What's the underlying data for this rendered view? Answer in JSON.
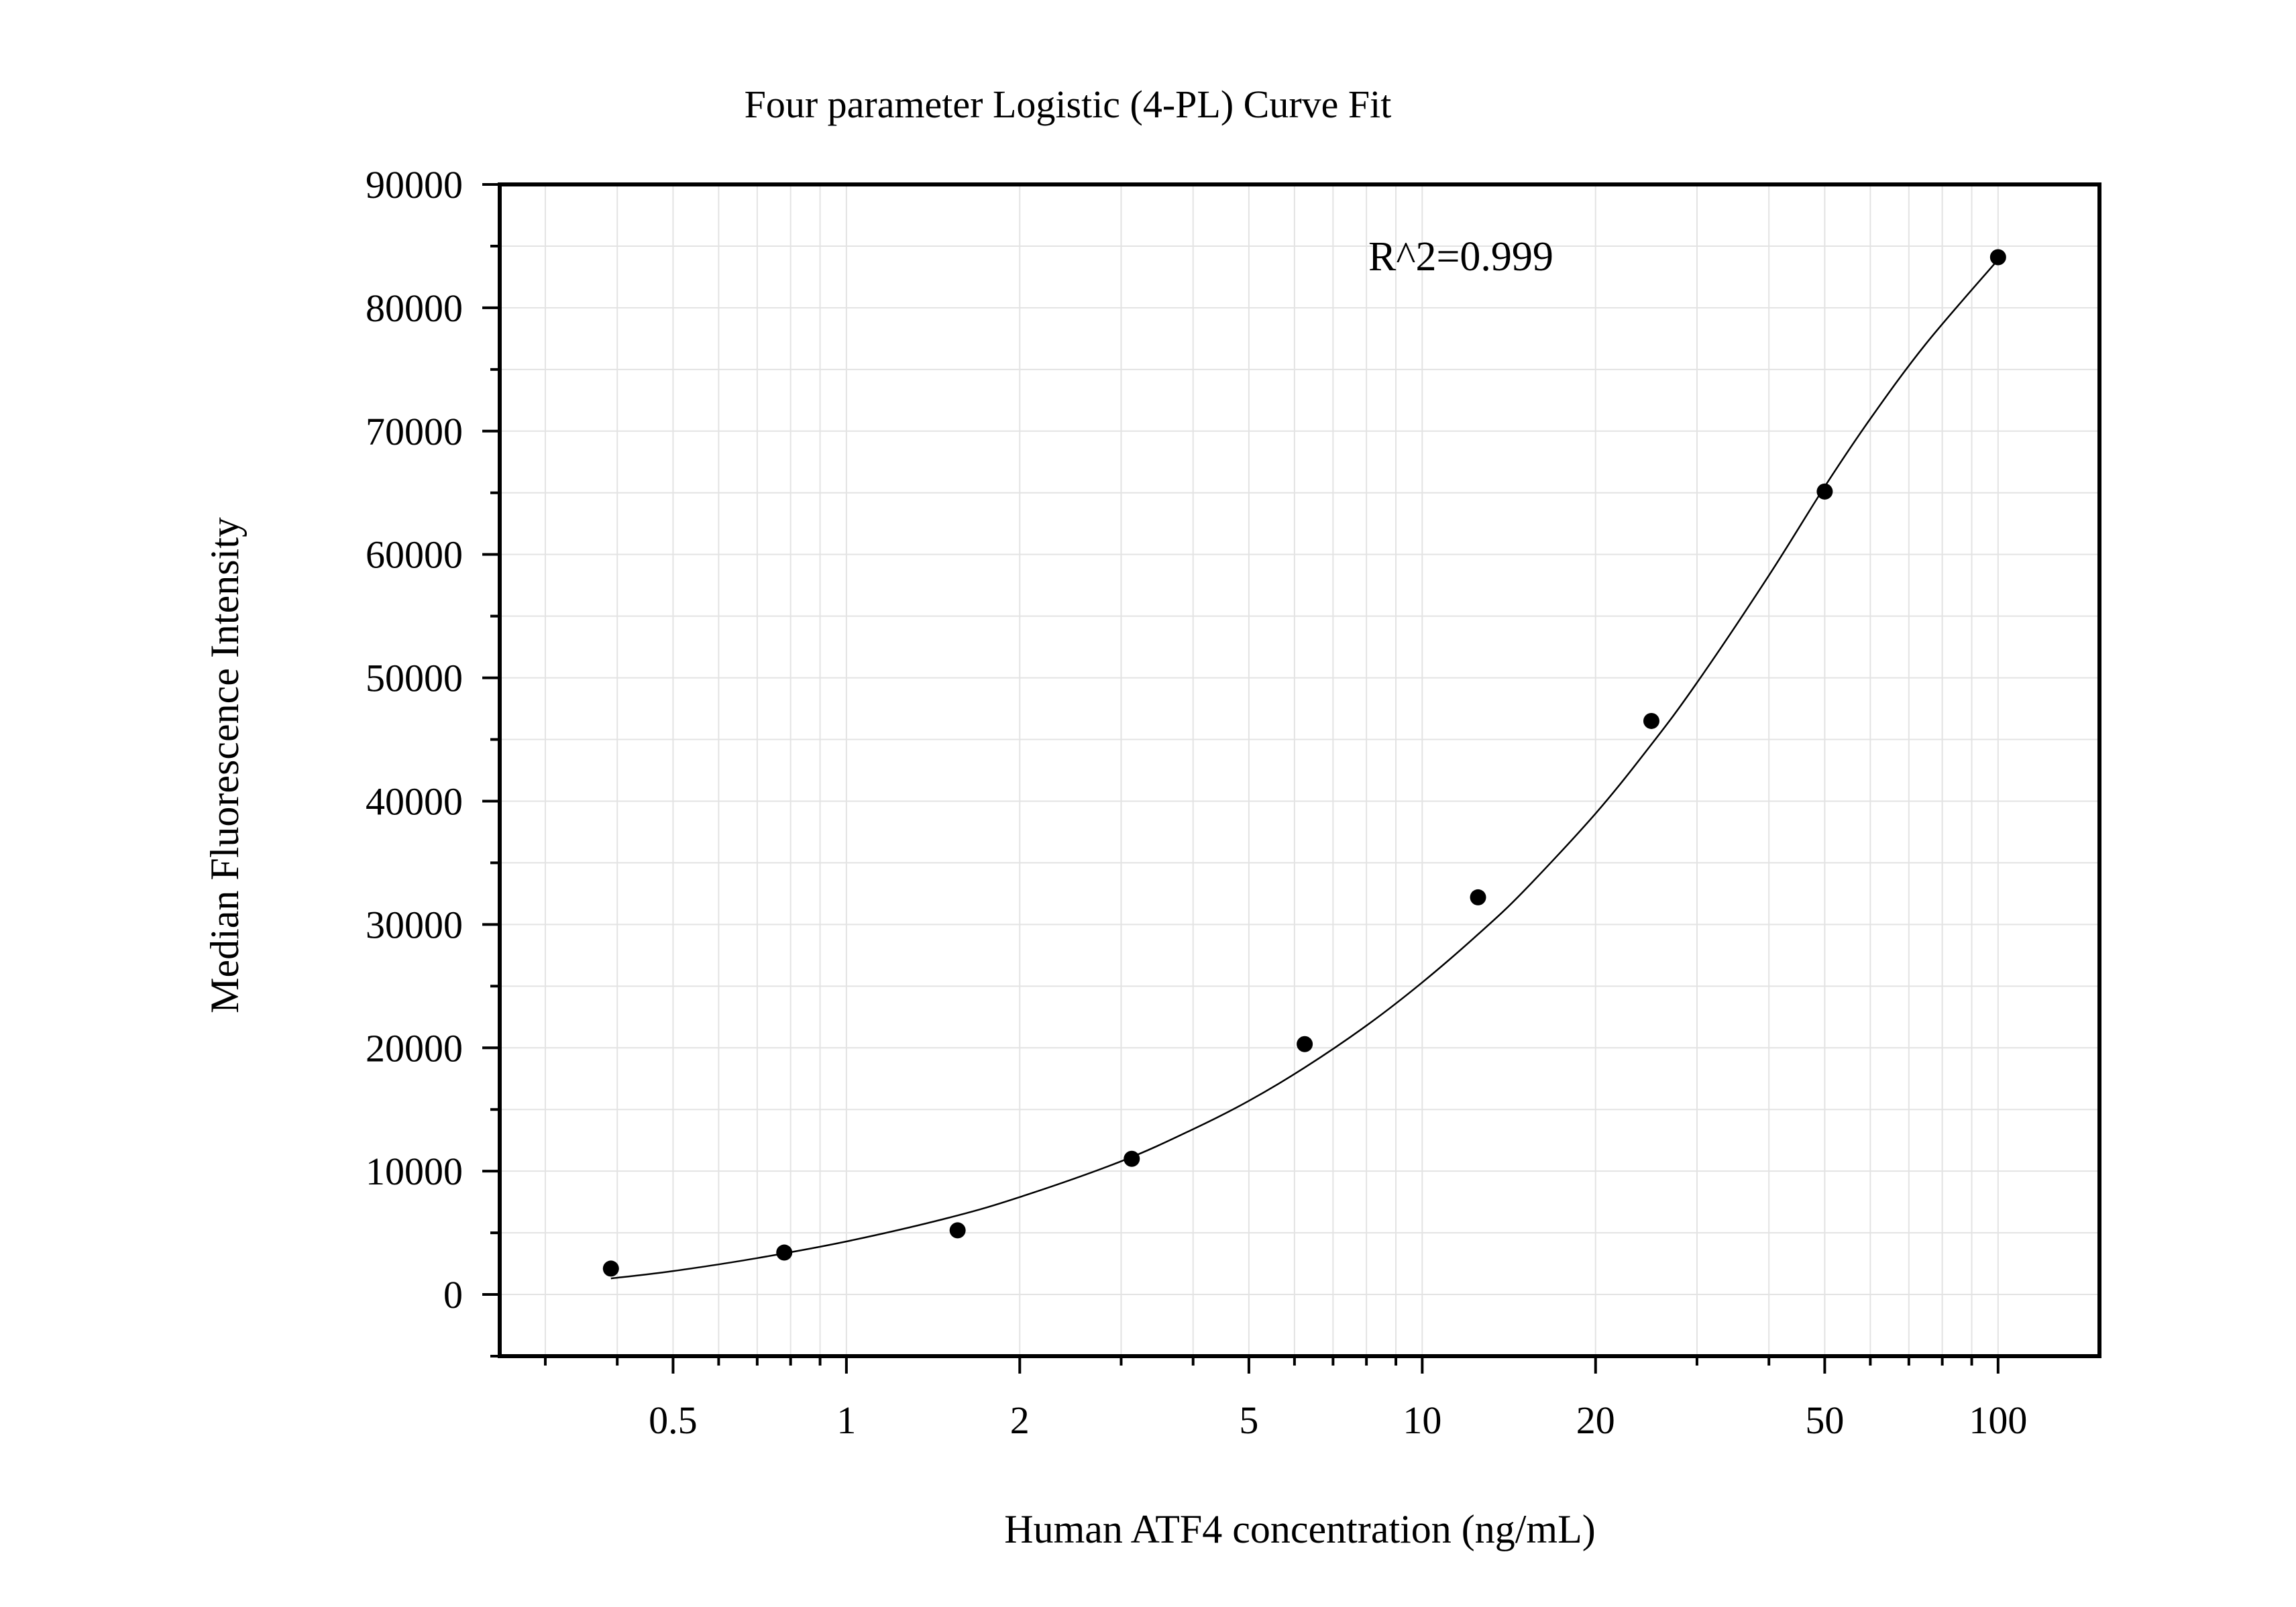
{
  "chart_data": {
    "type": "scatter",
    "title": "Four parameter Logistic (4-PL) Curve Fit",
    "xlabel": "Human ATF4 concentration (ng/mL)",
    "ylabel": "Median Fluorescence Intensity",
    "annotation": "R^2=0.999",
    "x_scale": "log",
    "xlim": [
      0.25,
      150
    ],
    "ylim": [
      -5000,
      90000
    ],
    "grid": true,
    "x_ticks": [
      0.5,
      1,
      2,
      5,
      10,
      20,
      50,
      100
    ],
    "x_tick_labels": [
      "0.5",
      "1",
      "2",
      "5",
      "10",
      "20",
      "50",
      "100"
    ],
    "y_ticks": [
      0,
      10000,
      20000,
      30000,
      40000,
      50000,
      60000,
      70000,
      80000,
      90000
    ],
    "y_tick_labels": [
      "0",
      "10000",
      "20000",
      "30000",
      "40000",
      "50000",
      "60000",
      "70000",
      "80000",
      "90000"
    ],
    "series": [
      {
        "x": [
          0.39,
          0.78,
          1.56,
          3.13,
          6.25,
          12.5,
          25,
          50,
          100
        ],
        "y": [
          2100,
          3400,
          5200,
          11000,
          20300,
          32200,
          46500,
          65100,
          84100
        ]
      }
    ],
    "fit_curve": {
      "model": "4-PL",
      "x": [
        0.39,
        0.5,
        0.7,
        1,
        1.5,
        2,
        3,
        4,
        5,
        6.25,
        8,
        10,
        12.5,
        15,
        20,
        25,
        30,
        40,
        50,
        60,
        75,
        100
      ],
      "y": [
        1300,
        1900,
        2950,
        4300,
        6200,
        7900,
        10800,
        13400,
        15700,
        18400,
        21800,
        25300,
        29200,
        32700,
        39000,
        44600,
        49600,
        58300,
        65500,
        71000,
        77100,
        83900
      ]
    }
  }
}
